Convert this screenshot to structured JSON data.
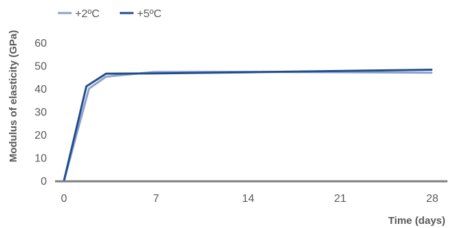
{
  "chart_data": {
    "type": "line",
    "title": "",
    "xlabel": "Time (days)",
    "ylabel": "Modulus of elasticity (GPa)",
    "xlim": [
      0,
      28
    ],
    "ylim": [
      0,
      60
    ],
    "x_ticks": [
      "0",
      "7",
      "14",
      "21",
      "28"
    ],
    "y_ticks": [
      "0",
      "10",
      "20",
      "30",
      "40",
      "50",
      "60"
    ],
    "grid": false,
    "legend_position": "top-left",
    "series": [
      {
        "name": "+2ºC",
        "color": "#8fa0cf",
        "x": [
          0,
          1.9,
          3.2,
          6.8,
          14,
          28
        ],
        "y": [
          0,
          40,
          45.2,
          47.2,
          47.3,
          46.9
        ]
      },
      {
        "name": "+5ºC",
        "color": "#1f4e8c",
        "x": [
          0,
          1.7,
          3.2,
          7,
          14,
          28
        ],
        "y": [
          0,
          41,
          46.5,
          46.6,
          47.1,
          48.2
        ]
      }
    ]
  }
}
